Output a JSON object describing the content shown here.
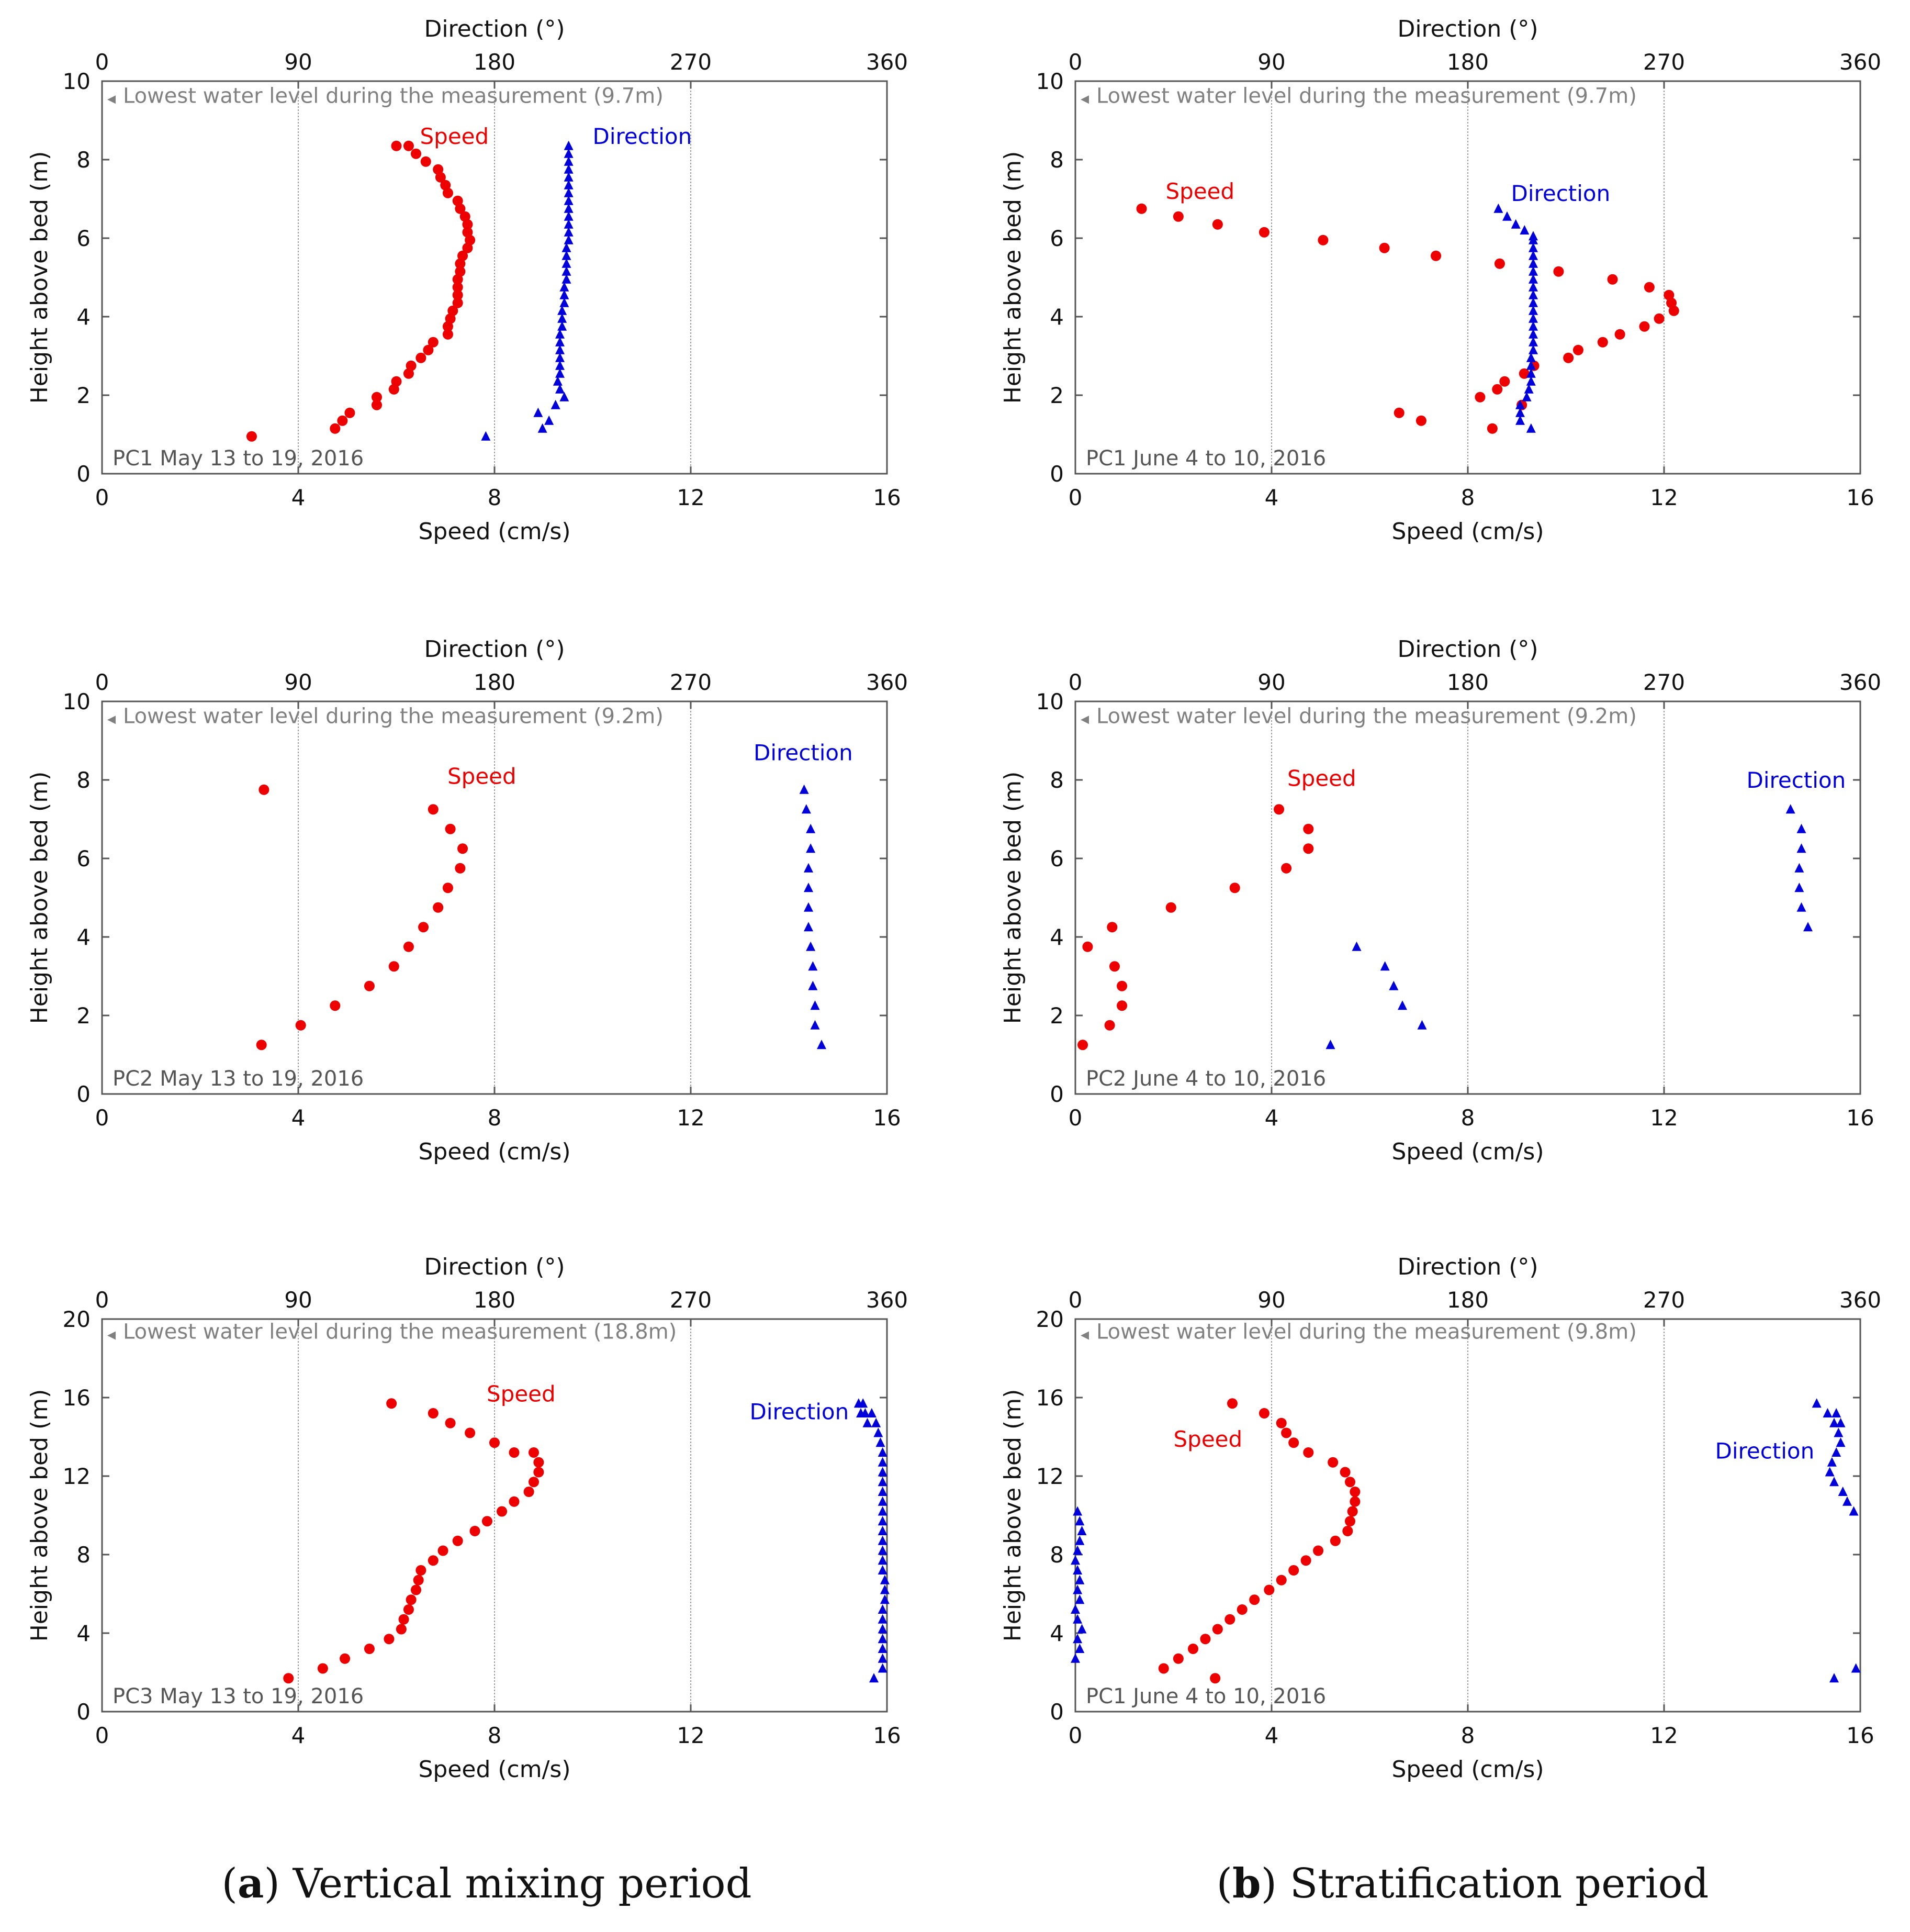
{
  "figure": {
    "caption_a": {
      "prefix": "(",
      "letter": "a",
      "text": ") Vertical mixing period"
    },
    "caption_b": {
      "prefix": "(",
      "letter": "b",
      "text": ") Stratification period"
    }
  },
  "colors": {
    "speed": "#ee0000",
    "direction": "#0000dd",
    "note": "#808080",
    "grid": "#9a9a9a"
  },
  "chart_data": [
    {
      "id": "a1",
      "type": "scatter",
      "title": "",
      "tag": "PC1  May 13 to 19, 2016",
      "xlabel": "Speed (cm/s)",
      "x2label": "Direction (°)",
      "ylabel": "Height above bed (m)",
      "xlim": [
        0,
        16
      ],
      "x2lim": [
        0,
        360
      ],
      "ylim": [
        0,
        10
      ],
      "xticks": [
        "0",
        "4",
        "8",
        "12",
        "16"
      ],
      "x2ticks": [
        "0",
        "90",
        "180",
        "270",
        "360"
      ],
      "yticks": [
        "0",
        "2",
        "4",
        "6",
        "8",
        "10"
      ],
      "grid": "vertical",
      "note": "Lowest water level during the measurement (9.7m)",
      "speed_label": "Speed",
      "direction_label": "Direction",
      "series": [
        {
          "name": "Speed",
          "axis": "speed",
          "marker": "circle",
          "x": [
            3.05,
            4.75,
            4.9,
            5.05,
            5.6,
            5.6,
            5.95,
            6.0,
            6.25,
            6.3,
            6.5,
            6.65,
            6.75,
            7.05,
            7.05,
            7.1,
            7.15,
            7.25,
            7.25,
            7.25,
            7.25,
            7.3,
            7.3,
            7.35,
            7.45,
            7.5,
            7.45,
            7.45,
            7.4,
            7.3,
            7.25,
            7.05,
            7.0,
            6.9,
            6.85,
            6.6,
            6.4,
            6.25,
            6.0
          ],
          "y": [
            0.95,
            1.15,
            1.35,
            1.55,
            1.75,
            1.95,
            2.15,
            2.35,
            2.55,
            2.75,
            2.95,
            3.15,
            3.35,
            3.55,
            3.75,
            3.95,
            4.15,
            4.35,
            4.55,
            4.75,
            4.95,
            5.15,
            5.35,
            5.55,
            5.75,
            5.95,
            6.15,
            6.35,
            6.55,
            6.75,
            6.95,
            7.15,
            7.35,
            7.55,
            7.75,
            7.95,
            8.15,
            8.35,
            8.35
          ]
        },
        {
          "name": "Direction",
          "axis": "direction",
          "marker": "triangle",
          "x": [
            176,
            202,
            205,
            200,
            208,
            212,
            210,
            209,
            210,
            210,
            210,
            210,
            210,
            210,
            211,
            211,
            211,
            212,
            212,
            212,
            213,
            213,
            213,
            213,
            213,
            214,
            214,
            214,
            214,
            214,
            214,
            214,
            214,
            214,
            214,
            214,
            214,
            214
          ],
          "y": [
            0.95,
            1.15,
            1.35,
            1.55,
            1.75,
            1.95,
            2.15,
            2.35,
            2.55,
            2.75,
            2.95,
            3.15,
            3.35,
            3.55,
            3.75,
            3.95,
            4.15,
            4.35,
            4.55,
            4.75,
            4.95,
            5.15,
            5.35,
            5.55,
            5.75,
            5.95,
            6.15,
            6.35,
            6.55,
            6.75,
            6.95,
            7.15,
            7.35,
            7.55,
            7.75,
            7.95,
            8.15,
            8.35
          ]
        }
      ]
    },
    {
      "id": "b1",
      "type": "scatter",
      "title": "",
      "tag": "PC1  June 4 to 10, 2016",
      "xlabel": "Speed (cm/s)",
      "x2label": "Direction (°)",
      "ylabel": "Height above bed (m)",
      "xlim": [
        0,
        16
      ],
      "x2lim": [
        0,
        360
      ],
      "ylim": [
        0,
        10
      ],
      "xticks": [
        "0",
        "4",
        "8",
        "12",
        "16"
      ],
      "x2ticks": [
        "0",
        "90",
        "180",
        "270",
        "360"
      ],
      "yticks": [
        "0",
        "2",
        "4",
        "6",
        "8",
        "10"
      ],
      "grid": "vertical",
      "note": "Lowest water level during the measurement (9.7m)",
      "speed_label": "Speed",
      "direction_label": "Direction",
      "series": [
        {
          "name": "Speed",
          "axis": "speed",
          "marker": "circle",
          "x": [
            8.5,
            7.05,
            6.6,
            9.1,
            8.25,
            8.6,
            8.75,
            9.15,
            9.35,
            10.05,
            10.25,
            10.75,
            11.1,
            11.6,
            11.9,
            12.2,
            12.15,
            12.1,
            11.7,
            10.95,
            9.85,
            8.65,
            7.35,
            6.3,
            5.05,
            3.85,
            2.9,
            2.1,
            1.35
          ],
          "y": [
            1.15,
            1.35,
            1.55,
            1.75,
            1.95,
            2.15,
            2.35,
            2.55,
            2.75,
            2.95,
            3.15,
            3.35,
            3.55,
            3.75,
            3.95,
            4.15,
            4.35,
            4.55,
            4.75,
            4.95,
            5.15,
            5.35,
            5.55,
            5.75,
            5.95,
            6.15,
            6.35,
            6.55,
            6.75
          ]
        },
        {
          "name": "Direction",
          "axis": "direction",
          "marker": "triangle",
          "x": [
            209,
            204,
            204,
            204,
            207,
            208,
            209,
            209,
            209,
            209,
            210,
            210,
            210,
            210,
            210,
            210,
            210,
            210,
            210,
            210,
            210,
            210,
            210,
            210,
            210,
            210,
            206,
            202,
            198,
            194
          ],
          "y": [
            1.15,
            1.35,
            1.55,
            1.75,
            1.95,
            2.15,
            2.35,
            2.55,
            2.75,
            2.95,
            3.15,
            3.35,
            3.55,
            3.75,
            3.95,
            4.15,
            4.35,
            4.55,
            4.75,
            4.95,
            5.15,
            5.35,
            5.55,
            5.75,
            5.95,
            6.05,
            6.2,
            6.35,
            6.55,
            6.75
          ]
        }
      ]
    },
    {
      "id": "a2",
      "type": "scatter",
      "title": "",
      "tag": "PC2  May 13 to 19, 2016",
      "xlabel": "Speed (cm/s)",
      "x2label": "Direction (°)",
      "ylabel": "Height above bed (m)",
      "xlim": [
        0,
        16
      ],
      "x2lim": [
        0,
        360
      ],
      "ylim": [
        0,
        10
      ],
      "xticks": [
        "0",
        "4",
        "8",
        "12",
        "16"
      ],
      "x2ticks": [
        "0",
        "90",
        "180",
        "270",
        "360"
      ],
      "yticks": [
        "0",
        "2",
        "4",
        "6",
        "8",
        "10"
      ],
      "grid": "vertical",
      "note": "Lowest water level during the measurement (9.2m)",
      "speed_label": "Speed",
      "direction_label": "Direction",
      "series": [
        {
          "name": "Speed",
          "axis": "speed",
          "marker": "circle",
          "x": [
            3.25,
            4.05,
            4.75,
            5.45,
            5.95,
            6.25,
            6.55,
            6.85,
            7.05,
            7.3,
            7.35,
            7.1,
            6.75,
            3.3
          ],
          "y": [
            1.25,
            1.75,
            2.25,
            2.75,
            3.25,
            3.75,
            4.25,
            4.75,
            5.25,
            5.75,
            6.25,
            6.75,
            7.25,
            7.75
          ]
        },
        {
          "name": "Direction",
          "axis": "direction",
          "marker": "triangle",
          "x": [
            330,
            327,
            327,
            326,
            326,
            325,
            324,
            324,
            324,
            324,
            325,
            325,
            323,
            322
          ],
          "y": [
            1.25,
            1.75,
            2.25,
            2.75,
            3.25,
            3.75,
            4.25,
            4.75,
            5.25,
            5.75,
            6.25,
            6.75,
            7.25,
            7.75
          ]
        }
      ]
    },
    {
      "id": "b2",
      "type": "scatter",
      "title": "",
      "tag": "PC2  June 4 to 10, 2016",
      "xlabel": "Speed (cm/s)",
      "x2label": "Direction (°)",
      "ylabel": "Height above bed (m)",
      "xlim": [
        0,
        16
      ],
      "x2lim": [
        0,
        360
      ],
      "ylim": [
        0,
        10
      ],
      "xticks": [
        "0",
        "4",
        "8",
        "12",
        "16"
      ],
      "x2ticks": [
        "0",
        "90",
        "180",
        "270",
        "360"
      ],
      "yticks": [
        "0",
        "2",
        "4",
        "6",
        "8",
        "10"
      ],
      "grid": "vertical",
      "note": "Lowest water level during the measurement (9.2m)",
      "speed_label": "Speed",
      "direction_label": "Direction",
      "series": [
        {
          "name": "Speed",
          "axis": "speed",
          "marker": "circle",
          "x": [
            0.15,
            0.7,
            0.95,
            0.95,
            0.8,
            0.25,
            0.75,
            1.95,
            3.25,
            4.3,
            4.75,
            4.75,
            4.15
          ],
          "y": [
            1.25,
            1.75,
            2.25,
            2.75,
            3.25,
            3.75,
            4.25,
            4.75,
            5.25,
            5.75,
            6.25,
            6.75,
            7.25
          ]
        },
        {
          "name": "Direction",
          "axis": "direction",
          "marker": "triangle",
          "x": [
            117,
            159,
            150,
            146,
            142,
            129,
            336,
            333,
            332,
            332,
            333,
            333,
            328
          ],
          "y": [
            1.25,
            1.75,
            2.25,
            2.75,
            3.25,
            3.75,
            4.25,
            4.75,
            5.25,
            5.75,
            6.25,
            6.75,
            7.25
          ]
        }
      ]
    },
    {
      "id": "a3",
      "type": "scatter",
      "title": "",
      "tag": "PC3  May 13 to 19, 2016",
      "xlabel": "Speed (cm/s)",
      "x2label": "Direction (°)",
      "ylabel": "Height above bed (m)",
      "xlim": [
        0,
        16
      ],
      "x2lim": [
        0,
        360
      ],
      "ylim": [
        0,
        20
      ],
      "xticks": [
        "0",
        "4",
        "8",
        "12",
        "16"
      ],
      "x2ticks": [
        "0",
        "90",
        "180",
        "270",
        "360"
      ],
      "yticks": [
        "0",
        "4",
        "8",
        "12",
        "16",
        "20"
      ],
      "grid": "vertical",
      "note": "Lowest water level during the measurement (18.8m)",
      "speed_label": "Speed",
      "direction_label": "Direction",
      "series": [
        {
          "name": "Speed",
          "axis": "speed",
          "marker": "circle",
          "x": [
            3.8,
            4.5,
            4.95,
            5.45,
            5.85,
            6.1,
            6.15,
            6.25,
            6.3,
            6.4,
            6.45,
            6.5,
            6.75,
            6.95,
            7.25,
            7.6,
            7.85,
            8.15,
            8.4,
            8.7,
            8.8,
            8.9,
            8.9,
            8.8,
            8.4,
            8.0,
            7.5,
            7.1,
            6.75,
            5.9
          ],
          "y": [
            1.7,
            2.2,
            2.7,
            3.2,
            3.7,
            4.2,
            4.7,
            5.2,
            5.7,
            6.2,
            6.7,
            7.2,
            7.7,
            8.2,
            8.7,
            9.2,
            9.7,
            10.2,
            10.7,
            11.2,
            11.7,
            12.2,
            12.7,
            13.2,
            13.2,
            13.7,
            14.2,
            14.7,
            15.2,
            15.7
          ]
        },
        {
          "name": "Direction",
          "axis": "direction",
          "marker": "triangle",
          "x": [
            354,
            358,
            358,
            358,
            358,
            358,
            358,
            358,
            359,
            359,
            359,
            358,
            358,
            358,
            358,
            358,
            358,
            358,
            358,
            358,
            358,
            358,
            358,
            358,
            357,
            356,
            355,
            353,
            349,
            351,
            348,
            350,
            347
          ],
          "y": [
            1.7,
            2.2,
            2.7,
            3.2,
            3.7,
            4.2,
            4.7,
            5.2,
            5.7,
            6.2,
            6.7,
            7.2,
            7.7,
            8.2,
            8.7,
            9.2,
            9.7,
            10.2,
            10.7,
            11.2,
            11.7,
            12.2,
            12.7,
            13.2,
            13.7,
            14.2,
            14.7,
            15.2,
            15.7,
            14.7,
            15.2,
            15.2,
            15.7
          ]
        }
      ]
    },
    {
      "id": "b3",
      "type": "scatter",
      "title": "",
      "tag": "PC1  June 4 to 10, 2016",
      "xlabel": "Speed (cm/s)",
      "x2label": "Direction (°)",
      "ylabel": "Height above bed (m)",
      "xlim": [
        0,
        16
      ],
      "x2lim": [
        0,
        360
      ],
      "ylim": [
        0,
        20
      ],
      "xticks": [
        "0",
        "4",
        "8",
        "12",
        "16"
      ],
      "x2ticks": [
        "0",
        "90",
        "180",
        "270",
        "360"
      ],
      "yticks": [
        "0",
        "4",
        "8",
        "12",
        "16",
        "20"
      ],
      "grid": "vertical",
      "note": "Lowest water level during the measurement (9.8m)",
      "speed_label": "Speed",
      "direction_label": "Direction",
      "series": [
        {
          "name": "Speed",
          "axis": "speed",
          "marker": "circle",
          "x": [
            2.85,
            1.8,
            2.1,
            2.4,
            2.65,
            2.9,
            3.15,
            3.4,
            3.65,
            3.95,
            4.2,
            4.45,
            4.7,
            4.95,
            5.3,
            5.55,
            5.6,
            5.65,
            5.7,
            5.7,
            5.6,
            5.5,
            5.25,
            4.75,
            4.45,
            4.3,
            4.2,
            3.85,
            3.2
          ],
          "y": [
            1.7,
            2.2,
            2.7,
            3.2,
            3.7,
            4.2,
            4.7,
            5.2,
            5.7,
            6.2,
            6.7,
            7.2,
            7.7,
            8.2,
            8.7,
            9.2,
            9.7,
            10.2,
            10.7,
            11.2,
            11.7,
            12.2,
            12.7,
            13.2,
            13.7,
            14.2,
            14.7,
            15.2,
            15.7
          ]
        },
        {
          "name": "Direction",
          "axis": "direction",
          "marker": "triangle",
          "x": [
            348,
            358,
            0,
            2,
            1,
            3,
            1,
            0,
            2,
            1,
            2,
            1,
            0,
            1,
            2,
            3,
            2,
            1,
            357,
            354,
            352,
            348,
            346,
            347,
            349,
            351,
            350,
            351,
            348,
            349,
            345,
            340
          ],
          "y": [
            1.7,
            2.2,
            2.7,
            3.2,
            3.7,
            4.2,
            4.7,
            5.2,
            5.7,
            6.2,
            6.7,
            7.2,
            7.7,
            8.2,
            8.7,
            9.2,
            9.7,
            10.2,
            10.2,
            10.7,
            11.2,
            11.7,
            12.2,
            12.7,
            13.2,
            13.7,
            14.2,
            14.7,
            14.7,
            15.2,
            15.2,
            15.7
          ]
        }
      ]
    }
  ]
}
